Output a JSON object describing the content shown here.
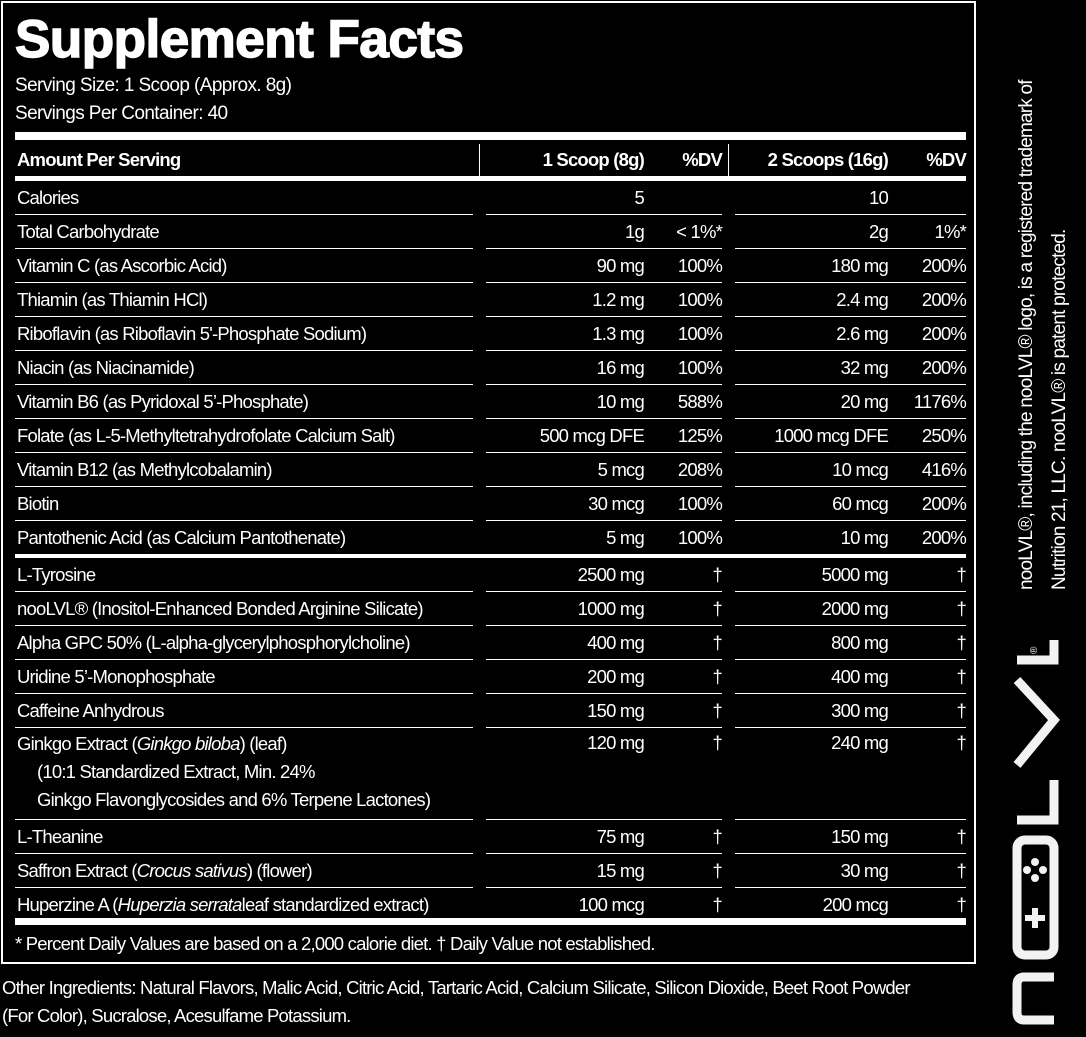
{
  "title": "Supplement Facts",
  "serving_size": "Serving Size: 1 Scoop (Approx. 8g)",
  "servings_per_container": "Servings Per Container: 40",
  "header": {
    "label": "Amount Per Serving",
    "col1": "1 Scoop (8g)",
    "dv1": "%DV",
    "col2": "2 Scoops (16g)",
    "dv2": "%DV"
  },
  "rows_a": [
    {
      "name": "Calories",
      "v1": "5",
      "d1": "",
      "v2": "10",
      "d2": ""
    },
    {
      "name": "Total Carbohydrate",
      "v1": "1g",
      "d1": "< 1%*",
      "v2": "2g",
      "d2": "1%*"
    },
    {
      "name": "Vitamin C (as Ascorbic Acid)",
      "v1": "90 mg",
      "d1": "100%",
      "v2": "180 mg",
      "d2": "200%"
    },
    {
      "name": "Thiamin (as Thiamin HCl)",
      "v1": "1.2 mg",
      "d1": "100%",
      "v2": "2.4 mg",
      "d2": "200%"
    },
    {
      "name": "Riboflavin (as Riboflavin 5'-Phosphate Sodium)",
      "v1": "1.3 mg",
      "d1": "100%",
      "v2": "2.6 mg",
      "d2": "200%"
    },
    {
      "name": "Niacin (as Niacinamide)",
      "v1": "16 mg",
      "d1": "100%",
      "v2": "32 mg",
      "d2": "200%"
    },
    {
      "name": "Vitamin B6 (as Pyridoxal 5’-Phosphate)",
      "v1": "10 mg",
      "d1": "588%",
      "v2": "20 mg",
      "d2": "1176%"
    },
    {
      "name": "Folate (as L-5-Methyltetrahydrofolate Calcium Salt)",
      "v1": "500 mcg DFE",
      "d1": "125%",
      "v2": "1000 mcg DFE",
      "d2": "250%"
    },
    {
      "name": "Vitamin B12 (as Methylcobalamin)",
      "v1": "5 mcg",
      "d1": "208%",
      "v2": "10 mcg",
      "d2": "416%"
    },
    {
      "name": "Biotin",
      "v1": "30 mcg",
      "d1": "100%",
      "v2": "60 mcg",
      "d2": "200%"
    },
    {
      "name": "Pantothenic Acid (as Calcium Pantothenate)",
      "v1": "5 mg",
      "d1": "100%",
      "v2": "10 mg",
      "d2": "200%"
    }
  ],
  "rows_b": [
    {
      "name": "L-Tyrosine",
      "v1": "2500 mg",
      "d1": "†",
      "v2": "5000 mg",
      "d2": "†"
    },
    {
      "name": "nooLVL®  (Inositol-Enhanced Bonded Arginine Silicate)",
      "v1": "1000 mg",
      "d1": "†",
      "v2": "2000 mg",
      "d2": "†"
    },
    {
      "name": "Alpha GPC 50% (L-alpha-glycerylphosphorylcholine)",
      "v1": "400 mg",
      "d1": "†",
      "v2": "800 mg",
      "d2": "†"
    },
    {
      "name": "Uridine 5’-Monophosphate",
      "v1": "200 mg",
      "d1": "†",
      "v2": "400 mg",
      "d2": "†"
    },
    {
      "name": "Caffeine Anhydrous",
      "v1": "150 mg",
      "d1": "†",
      "v2": "300 mg",
      "d2": "†"
    }
  ],
  "ginkgo": {
    "pre": "Ginkgo Extract (",
    "ital": "Ginkgo biloba",
    "post": ") (leaf)",
    "line2": "(10:1 Standardized Extract, Min. 24%",
    "line3": "Ginkgo Flavonglycosides and 6% Terpene Lactones)",
    "v1": "120 mg",
    "d1": "†",
    "v2": "240 mg",
    "d2": "†"
  },
  "theanine": {
    "name": "L-Theanine",
    "v1": "75 mg",
    "d1": "†",
    "v2": "150 mg",
    "d2": "†"
  },
  "saffron": {
    "pre": "Saffron Extract (",
    "ital": "Crocus sativus",
    "post": ") (flower)",
    "v1": "15 mg",
    "d1": "†",
    "v2": "30 mg",
    "d2": "†"
  },
  "huperzine": {
    "pre": "Huperzine A (",
    "ital": "Huperzia serrata",
    "post": " leaf standardized extract)",
    "v1": "100 mcg",
    "d1": "†",
    "v2": "200 mcg",
    "d2": "†"
  },
  "footnote": "* Percent Daily Values are based on a 2,000 calorie diet. † Daily Value not established.",
  "other_ingredients": "Other Ingredients: Natural Flavors, Malic Acid, Citric Acid, Tartaric Acid, Calcium Silicate, Silicon Dioxide, Beet Root Powder (For Color), Sucralose, Acesulfame Potassium.",
  "trademark_line1": "nooLVL®, including the nooLVL® logo, is a registered trademark of",
  "trademark_line2": "Nutrition 21, LLC. nooLVL® is patent protected.",
  "logo_text": "nooLVL®"
}
